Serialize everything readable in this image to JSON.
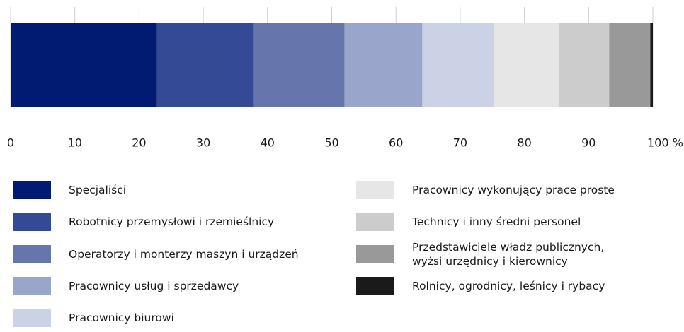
{
  "chart_data": {
    "type": "bar",
    "orientation": "horizontal",
    "stacked": true,
    "categories": [
      null
    ],
    "series": [
      {
        "name": "Specjaliści",
        "color": "#001b71",
        "values": [
          22.8
        ]
      },
      {
        "name": "Robotnicy przemysłowi i rzemieślnicy",
        "color": "#344a94",
        "values": [
          15.1
        ]
      },
      {
        "name": "Operatorzy i monterzy maszyn i urządzeń",
        "color": "#6676ad",
        "values": [
          14.1
        ]
      },
      {
        "name": "Pracownicy usług i sprzedawcy",
        "color": "#99a5cb",
        "values": [
          12.1
        ]
      },
      {
        "name": "Pracownicy biurowi",
        "color": "#ccd2e5",
        "values": [
          11.2
        ]
      },
      {
        "name": "Pracownicy wykonujący prace proste",
        "color": "#e6e6e6",
        "values": [
          10.1
        ]
      },
      {
        "name": "Technicy i inny średni personel",
        "color": "#cccccc",
        "values": [
          7.8
        ]
      },
      {
        "name": "Przedstawiciele władz publicznych,\nwyżsi urzędnicy i kierownicy",
        "color": "#999999",
        "values": [
          6.4
        ]
      },
      {
        "name": "Rolnicy, ogrodnicy, leśnicy i rybacy",
        "color": "#1a1a1a",
        "values": [
          0.4
        ]
      }
    ],
    "xlim": [
      0,
      100
    ],
    "xticks": [
      0,
      10,
      20,
      30,
      40,
      50,
      60,
      70,
      80,
      90,
      {
        "value": 100,
        "label": "100 %"
      }
    ],
    "grid": true
  }
}
